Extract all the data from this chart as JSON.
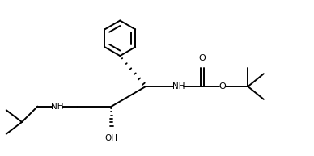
{
  "bg_color": "#ffffff",
  "line_color": "#000000",
  "line_width": 1.4,
  "figsize": [
    3.88,
    1.93
  ],
  "dpi": 100,
  "xlim": [
    0,
    11
  ],
  "ylim": [
    0,
    6
  ]
}
